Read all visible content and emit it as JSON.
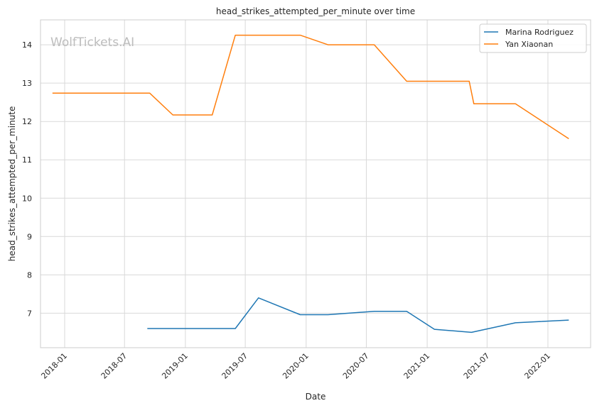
{
  "chart_data": {
    "type": "line",
    "title": "head_strikes_attempted_per_minute over time",
    "xlabel": "Date",
    "ylabel": "head_strikes_attempted_per_minute",
    "watermark": "WolfTickets.AI",
    "grid": true,
    "legend_position": "top-right",
    "xlim": [
      "2017-10-20",
      "2022-05-10"
    ],
    "ylim": [
      6.1,
      14.65
    ],
    "x_ticks": [
      "2018-01-01",
      "2018-07-01",
      "2019-01-01",
      "2019-07-01",
      "2020-01-01",
      "2020-07-01",
      "2021-01-01",
      "2021-07-01",
      "2022-01-01"
    ],
    "x_tick_labels": [
      "2018-01",
      "2018-07",
      "2019-01",
      "2019-07",
      "2020-01",
      "2020-07",
      "2021-01",
      "2021-07",
      "2022-01"
    ],
    "y_ticks": [
      7,
      8,
      9,
      10,
      11,
      12,
      13,
      14
    ],
    "y_tick_labels": [
      "7",
      "8",
      "9",
      "10",
      "11",
      "12",
      "13",
      "14"
    ],
    "series": [
      {
        "name": "Marina Rodriguez",
        "color": "#1f77b4",
        "points": [
          {
            "x": "2018-09-08",
            "y": 6.6
          },
          {
            "x": "2019-06-01",
            "y": 6.6
          },
          {
            "x": "2019-08-10",
            "y": 7.4
          },
          {
            "x": "2019-12-14",
            "y": 6.96
          },
          {
            "x": "2020-03-07",
            "y": 6.96
          },
          {
            "x": "2020-07-25",
            "y": 7.05
          },
          {
            "x": "2020-10-31",
            "y": 7.05
          },
          {
            "x": "2021-01-23",
            "y": 6.58
          },
          {
            "x": "2021-05-15",
            "y": 6.5
          },
          {
            "x": "2021-09-25",
            "y": 6.75
          },
          {
            "x": "2022-03-05",
            "y": 6.82
          }
        ]
      },
      {
        "name": "Yan Xiaonan",
        "color": "#ff7f0e",
        "points": [
          {
            "x": "2017-11-25",
            "y": 12.74
          },
          {
            "x": "2018-09-15",
            "y": 12.74
          },
          {
            "x": "2018-11-24",
            "y": 12.17
          },
          {
            "x": "2019-03-23",
            "y": 12.17
          },
          {
            "x": "2019-06-01",
            "y": 14.25
          },
          {
            "x": "2019-12-14",
            "y": 14.25
          },
          {
            "x": "2020-03-07",
            "y": 14.0
          },
          {
            "x": "2020-07-25",
            "y": 14.0
          },
          {
            "x": "2020-10-31",
            "y": 13.05
          },
          {
            "x": "2021-05-08",
            "y": 13.05
          },
          {
            "x": "2021-05-22",
            "y": 12.46
          },
          {
            "x": "2021-09-25",
            "y": 12.46
          },
          {
            "x": "2022-03-05",
            "y": 11.55
          }
        ]
      }
    ]
  }
}
